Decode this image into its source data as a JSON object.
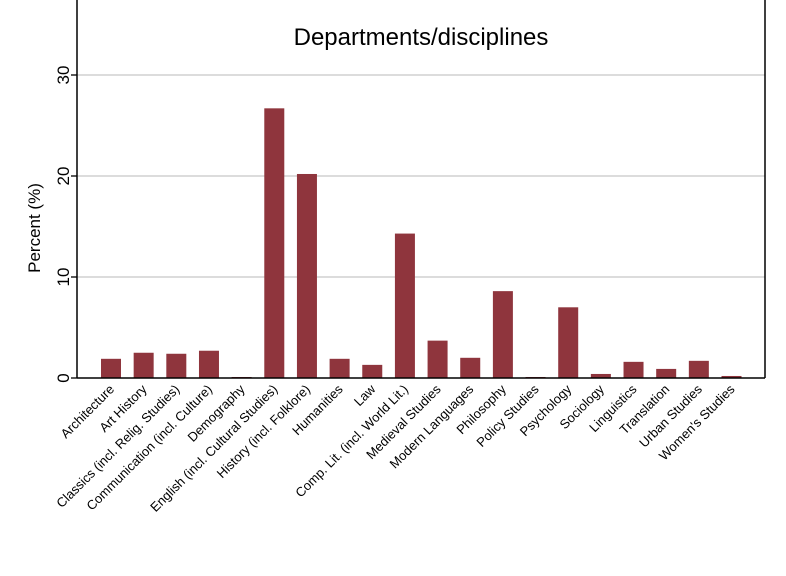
{
  "chart_data": {
    "type": "bar",
    "title": "Departments/disciplines",
    "xlabel": "",
    "ylabel": "Percent (%)",
    "ylim": [
      0,
      30
    ],
    "yticks": [
      0,
      10,
      20,
      30
    ],
    "grid": true,
    "bar_color": "#8F353D",
    "grid_color": "#DCDCDC",
    "categories": [
      "Architecture",
      "Art History",
      "Classics (incl. Relig. Studies)",
      "Communication (incl. Culture)",
      "Demography",
      "English (incl. Cultural Studies)",
      "History (incl. Folklore)",
      "Humanities",
      "Law",
      "Comp. Lit. (incl. World Lit.)",
      "Medieval Studies",
      "Modern Languages",
      "Philosophy",
      "Policy Studies",
      "Psychology",
      "Sociology",
      "Linguistics",
      "Translation",
      "Urban Studies",
      "Women's Studies"
    ],
    "values": [
      1.9,
      2.5,
      2.4,
      2.7,
      0.1,
      26.7,
      20.2,
      1.9,
      1.3,
      14.3,
      3.7,
      2.0,
      8.6,
      0.1,
      7.0,
      0.4,
      1.6,
      0.9,
      1.7,
      0.2
    ]
  }
}
